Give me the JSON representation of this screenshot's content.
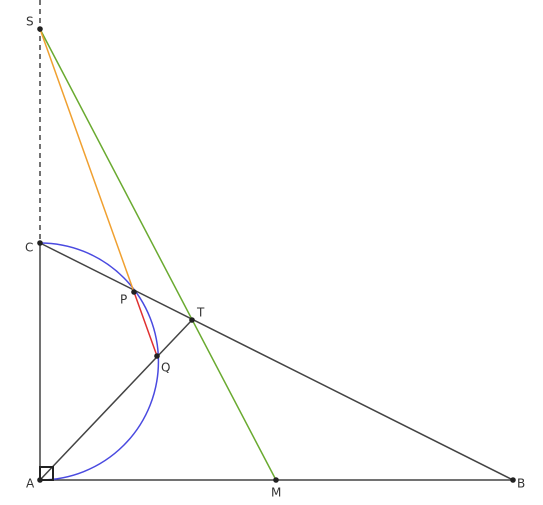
{
  "points": [
    {
      "label": "S"
    },
    {
      "label": "C"
    },
    {
      "label": "P"
    },
    {
      "label": "T"
    },
    {
      "label": "Q"
    },
    {
      "label": "A"
    },
    {
      "label": "M"
    },
    {
      "label": "B"
    }
  ]
}
